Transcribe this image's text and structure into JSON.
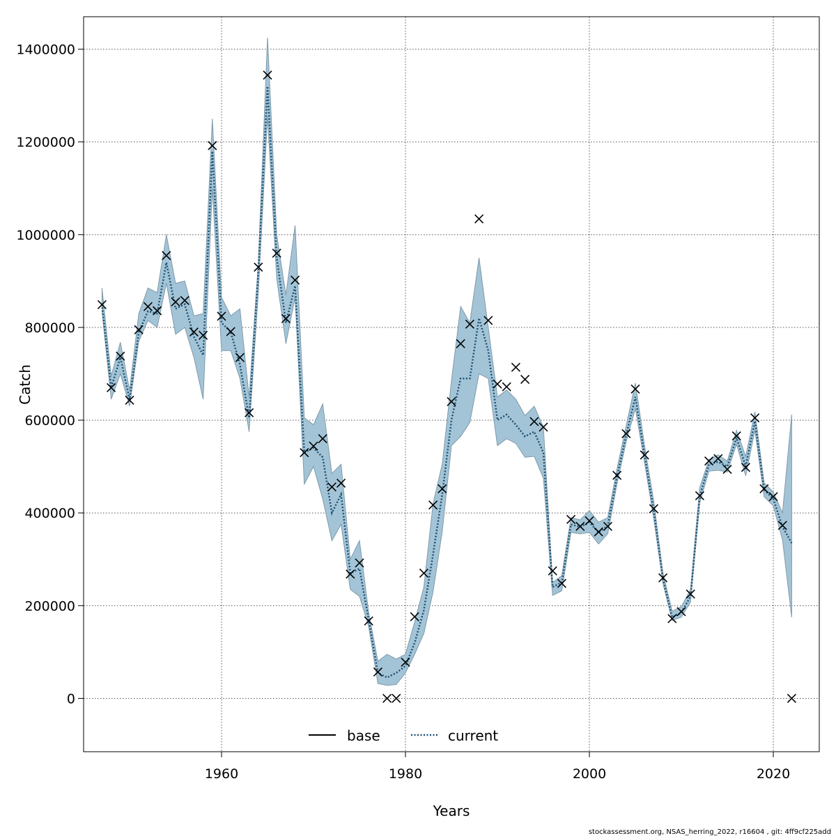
{
  "chart_data": {
    "type": "line",
    "xlabel": "Years",
    "ylabel": "Catch",
    "xlim": [
      1945,
      2025
    ],
    "ylim": [
      -115000,
      1470000
    ],
    "x_ticks": [
      1960,
      1980,
      2000,
      2020
    ],
    "x_tick_labels": [
      "1960",
      "1980",
      "2000",
      "2020"
    ],
    "y_ticks": [
      0,
      200000,
      400000,
      600000,
      800000,
      1000000,
      1200000,
      1400000
    ],
    "y_tick_labels": [
      "0",
      "200000",
      "400000",
      "600000",
      "800000",
      "1000000",
      "1200000",
      "1400000"
    ],
    "grid": true,
    "legend": {
      "position": "bottom-center",
      "entries": [
        "base",
        "current"
      ]
    },
    "colors": {
      "band": "#a3c4d6",
      "band_edge": "#7f9aaa",
      "current_line": "#1b4f72",
      "base_line": "#000000",
      "observed": "#000000"
    },
    "footer": "stockassessment.org, NSAS_herring_2022, r16604 , git: 4ff9cf225add",
    "years": [
      1947,
      1948,
      1949,
      1950,
      1951,
      1952,
      1953,
      1954,
      1955,
      1956,
      1957,
      1958,
      1959,
      1960,
      1961,
      1962,
      1963,
      1964,
      1965,
      1966,
      1967,
      1968,
      1969,
      1970,
      1971,
      1972,
      1973,
      1974,
      1975,
      1976,
      1977,
      1978,
      1979,
      1980,
      1981,
      1982,
      1983,
      1984,
      1985,
      1986,
      1987,
      1988,
      1989,
      1990,
      1991,
      1992,
      1993,
      1994,
      1995,
      1996,
      1997,
      1998,
      1999,
      2000,
      2001,
      2002,
      2003,
      2004,
      2005,
      2006,
      2007,
      2008,
      2009,
      2010,
      2011,
      2012,
      2013,
      2014,
      2015,
      2016,
      2017,
      2018,
      2019,
      2020,
      2021,
      2022
    ],
    "series": [
      {
        "name": "current",
        "style": "dotted",
        "values": [
          850000,
          670000,
          735000,
          645000,
          790000,
          835000,
          830000,
          940000,
          840000,
          850000,
          780000,
          740000,
          1180000,
          810000,
          790000,
          720000,
          605000,
          920000,
          1320000,
          950000,
          810000,
          890000,
          530000,
          540000,
          520000,
          400000,
          440000,
          270000,
          280000,
          170000,
          55000,
          45000,
          55000,
          70000,
          120000,
          190000,
          310000,
          440000,
          600000,
          690000,
          690000,
          820000,
          750000,
          600000,
          612000,
          590000,
          565000,
          575000,
          530000,
          240000,
          250000,
          375000,
          370000,
          380000,
          358000,
          372000,
          478000,
          568000,
          650000,
          525000,
          405000,
          258000,
          175000,
          185000,
          220000,
          435000,
          505000,
          510000,
          500000,
          562000,
          500000,
          598000,
          450000,
          430000,
          370000,
          335000
        ]
      },
      {
        "name": "current_upper",
        "values": [
          885000,
          695000,
          768000,
          665000,
          830000,
          885000,
          875000,
          1000000,
          895000,
          900000,
          825000,
          830000,
          1250000,
          865000,
          825000,
          840000,
          650000,
          940000,
          1425000,
          1000000,
          870000,
          1020000,
          605000,
          590000,
          635000,
          485000,
          505000,
          300000,
          340000,
          185000,
          80000,
          95000,
          85000,
          95000,
          165000,
          240000,
          420000,
          505000,
          685000,
          845000,
          810000,
          950000,
          800000,
          650000,
          665000,
          645000,
          610000,
          630000,
          585000,
          250000,
          265000,
          390000,
          385000,
          405000,
          380000,
          390000,
          495000,
          588000,
          680000,
          545000,
          425000,
          270000,
          188000,
          198000,
          235000,
          455000,
          515000,
          525000,
          512000,
          578000,
          522000,
          618000,
          465000,
          445000,
          400000,
          612000
        ]
      },
      {
        "name": "current_lower",
        "values": [
          835000,
          645000,
          700000,
          630000,
          770000,
          815000,
          800000,
          895000,
          785000,
          800000,
          735000,
          645000,
          1100000,
          750000,
          750000,
          690000,
          575000,
          875000,
          1255000,
          905000,
          765000,
          865000,
          462000,
          500000,
          430000,
          340000,
          375000,
          235000,
          220000,
          155000,
          32000,
          28000,
          30000,
          55000,
          95000,
          140000,
          230000,
          360000,
          545000,
          565000,
          595000,
          700000,
          690000,
          545000,
          560000,
          550000,
          520000,
          522000,
          475000,
          222000,
          232000,
          358000,
          355000,
          358000,
          333000,
          355000,
          462000,
          553000,
          625000,
          508000,
          388000,
          248000,
          168000,
          175000,
          208000,
          422000,
          490000,
          492000,
          488000,
          548000,
          480000,
          578000,
          435000,
          415000,
          342000,
          175000
        ]
      }
    ],
    "observed": {
      "name": "observed catch",
      "marker": "x",
      "values": [
        849000,
        670000,
        738000,
        643000,
        795000,
        845000,
        836000,
        955000,
        855000,
        858000,
        790000,
        783000,
        1192000,
        824000,
        791000,
        735000,
        616000,
        930000,
        1344000,
        960000,
        819000,
        902000,
        530000,
        544000,
        560000,
        456000,
        464000,
        268000,
        292000,
        167000,
        57000,
        0,
        0,
        78000,
        176000,
        270000,
        417000,
        452000,
        640000,
        765000,
        807000,
        1034000,
        815000,
        678000,
        672000,
        714000,
        688000,
        597000,
        585000,
        275000,
        248000,
        386000,
        371000,
        383000,
        359000,
        371000,
        481000,
        571000,
        667000,
        525000,
        409000,
        260000,
        172000,
        187000,
        225000,
        437000,
        512000,
        517000,
        494000,
        566000,
        498000,
        605000,
        452000,
        435000,
        373000,
        0
      ]
    }
  }
}
